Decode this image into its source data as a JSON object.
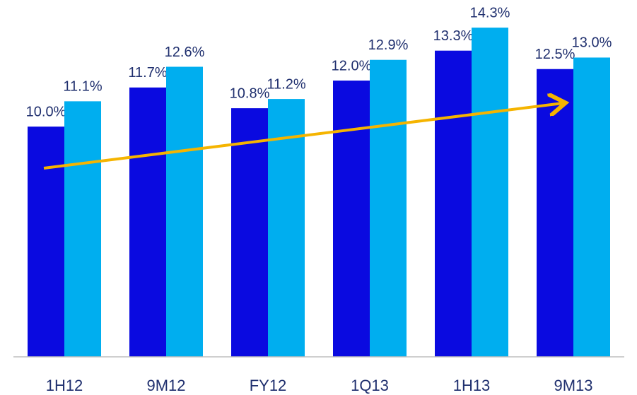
{
  "chart_data": {
    "type": "bar",
    "categories": [
      "1H12",
      "9M12",
      "FY12",
      "1Q13",
      "1H13",
      "9M13"
    ],
    "series": [
      {
        "color": "#0a0ae0",
        "values": [
          10.0,
          11.7,
          10.8,
          12.0,
          13.3,
          12.5
        ],
        "value_labels": [
          "10.0%",
          "11.7%",
          "10.8%",
          "12.0%",
          "13.3%",
          "12.5%"
        ]
      },
      {
        "color": "#00aeef",
        "values": [
          11.1,
          12.6,
          11.2,
          12.9,
          14.3,
          13.0
        ],
        "value_labels": [
          "11.1%",
          "12.6%",
          "11.2%",
          "12.9%",
          "14.3%",
          "13.0%"
        ]
      }
    ],
    "ylim": [
      0,
      15.5
    ]
  }
}
